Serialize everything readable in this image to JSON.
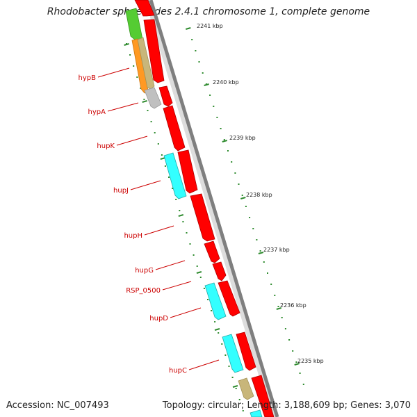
{
  "title": "Rhodobacter sphaeroides 2.4.1 chromosome 1, complete genome",
  "footer": {
    "accession": "Accession: NC_007493",
    "summary": "Topology: circular; Length: 3,188,609 bp; Genes: 3,070"
  },
  "colors": {
    "gene_label": "#cc0000",
    "scale_tick": "#2e8b2e",
    "forward_cds": "#ff0000",
    "reverse_cds": "#00ffff",
    "backbone": "#888888"
  },
  "scale_labels": [
    "2241 kbp",
    "2240 kbp",
    "2239 kbp",
    "2238 kbp",
    "2237 kbp",
    "2236 kbp",
    "2235 kbp"
  ],
  "gene_labels": [
    "hypB",
    "hypA",
    "hupK",
    "hupJ",
    "hupH",
    "hupG",
    "RSP_0500",
    "hupD",
    "hupC"
  ]
}
